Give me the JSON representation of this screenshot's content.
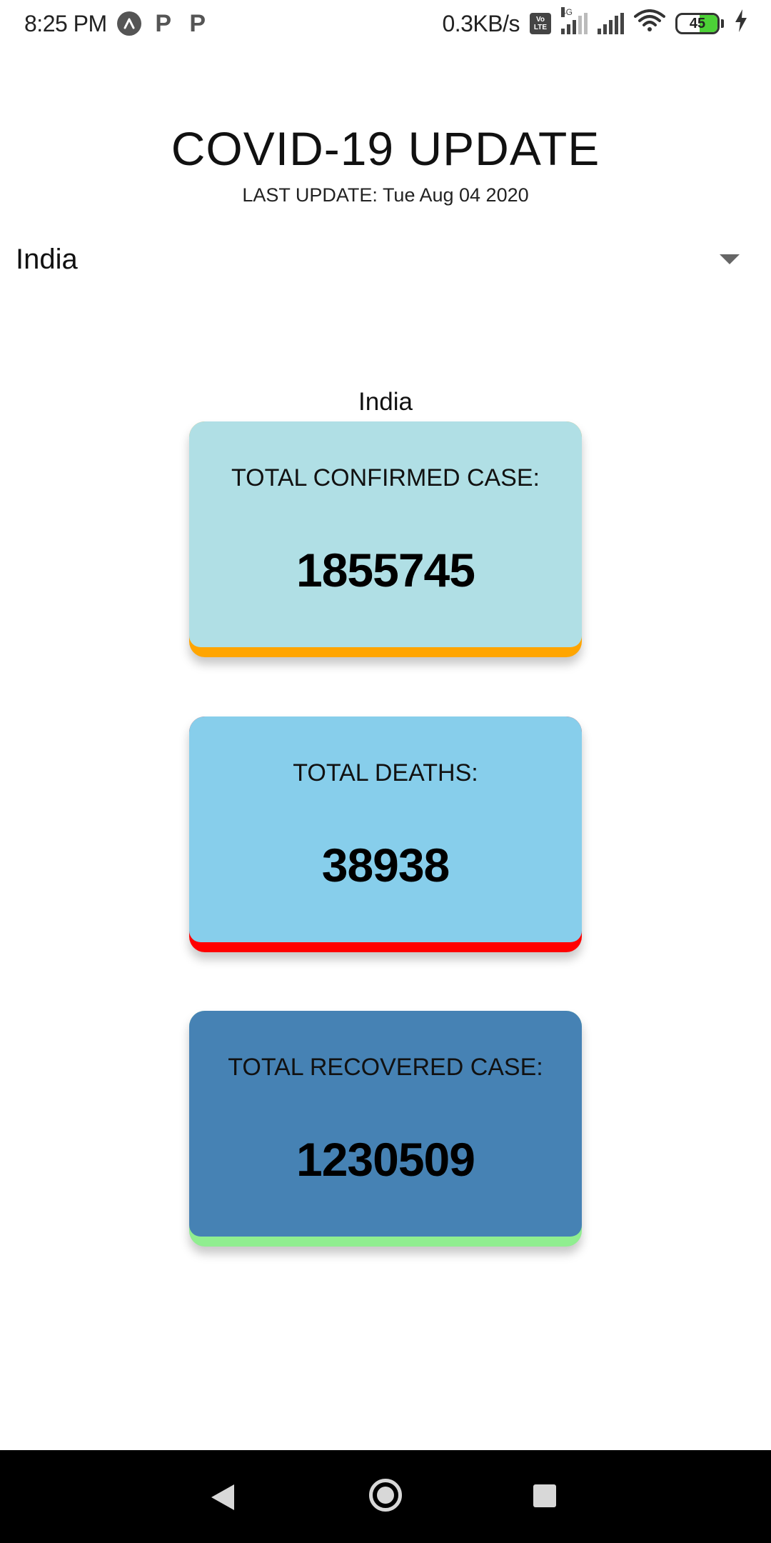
{
  "status_bar": {
    "time": "8:25 PM",
    "notification_icons": [
      "app-a-icon",
      "parking-p-icon",
      "parking-p-icon"
    ],
    "notification_letters": [
      "P",
      "P"
    ],
    "net_speed": "0.3KB/s",
    "volte_label_top": "Vo",
    "volte_label_bottom": "LTE",
    "network_type": "4G",
    "battery_level": "45",
    "charging": true
  },
  "header": {
    "title": "COVID-19 UPDATE",
    "last_update": "LAST UPDATE: Tue Aug 04 2020"
  },
  "country_select": {
    "selected": "India"
  },
  "country_heading": "India",
  "cards": {
    "confirmed": {
      "label": "TOTAL CONFIRMED CASE:",
      "value": "1855745",
      "bg_color": "#b0dfe5",
      "accent_color": "#ffa500"
    },
    "deaths": {
      "label": "TOTAL DEATHS:",
      "value": "38938",
      "bg_color": "#87ceeb",
      "accent_color": "#ff0000"
    },
    "recovered": {
      "label": "TOTAL RECOVERED CASE:",
      "value": "1230509",
      "bg_color": "#4682b4",
      "accent_color": "#90ee90"
    }
  },
  "nav_bar": {
    "buttons": [
      "back-icon",
      "home-icon",
      "recents-icon"
    ]
  }
}
